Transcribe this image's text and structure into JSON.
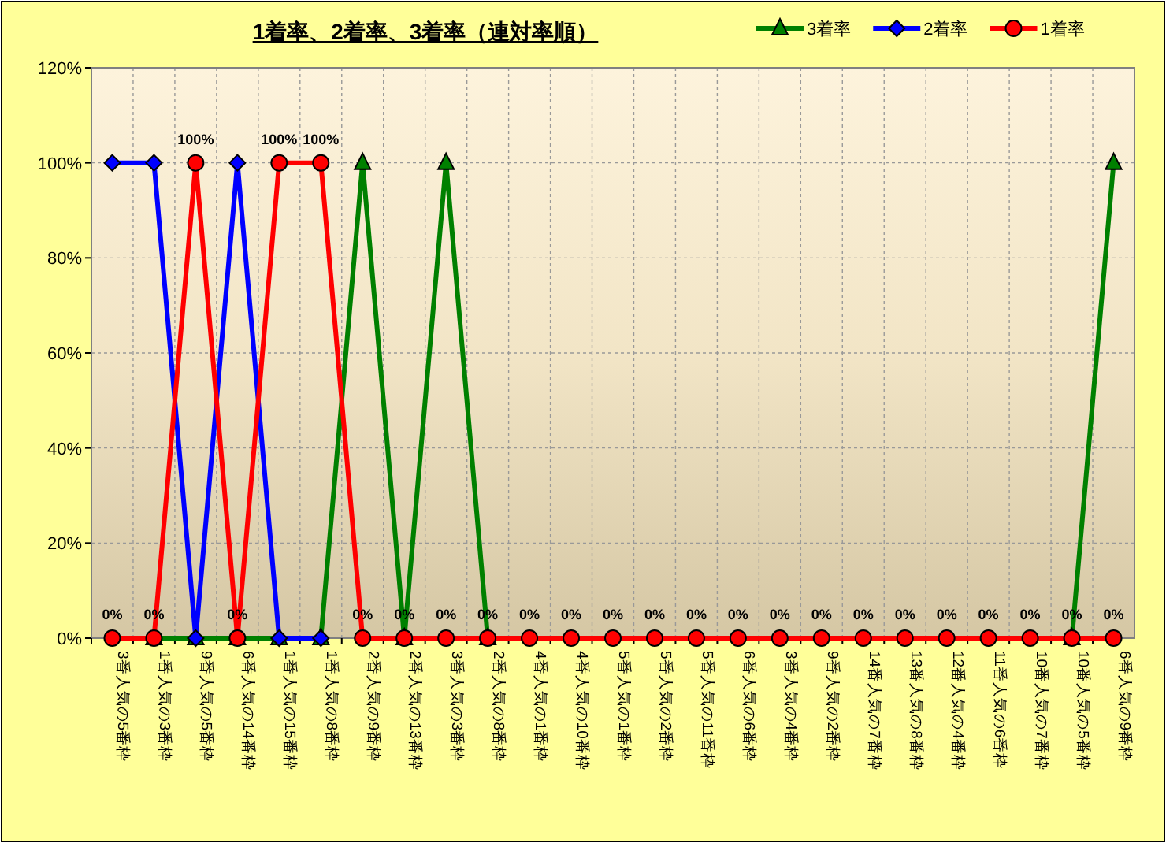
{
  "chart_data": {
    "type": "line",
    "title": "1着率、2着率、3着率（連対率順）",
    "categories": [
      "3番人気の5番枠",
      "1番人気の3番枠",
      "9番人気の5番枠",
      "6番人気の14番枠",
      "1番人気の15番枠",
      "1番人気の8番枠",
      "2番人気の9番枠",
      "2番人気の13番枠",
      "3番人気の3番枠",
      "2番人気の8番枠",
      "4番人気の1番枠",
      "4番人気の10番枠",
      "5番人気の1番枠",
      "5番人気の2番枠",
      "5番人気の11番枠",
      "6番人気の6番枠",
      "3番人気の4番枠",
      "9番人気の2番枠",
      "14番人気の7番枠",
      "13番人気の8番枠",
      "12番人気の4番枠",
      "11番人気の6番枠",
      "10番人気の7番枠",
      "10番人気の5番枠",
      "6番人気の9番枠"
    ],
    "series": [
      {
        "name": "3着率",
        "color": "#008000",
        "marker": "triangle",
        "values": [
          null,
          0,
          0,
          0,
          0,
          0,
          100,
          0,
          100,
          0,
          null,
          null,
          null,
          null,
          null,
          null,
          null,
          null,
          null,
          null,
          null,
          null,
          null,
          0,
          100
        ]
      },
      {
        "name": "2着率",
        "color": "#0000ff",
        "marker": "diamond",
        "values": [
          100,
          100,
          0,
          100,
          0,
          0,
          null,
          null,
          null,
          null,
          null,
          null,
          null,
          null,
          null,
          null,
          null,
          null,
          null,
          null,
          null,
          null,
          null,
          null,
          null
        ]
      },
      {
        "name": "1着率",
        "color": "#ff0000",
        "marker": "circle",
        "values": [
          0,
          0,
          100,
          0,
          100,
          100,
          0,
          0,
          0,
          0,
          0,
          0,
          0,
          0,
          0,
          0,
          0,
          0,
          0,
          0,
          0,
          0,
          0,
          0,
          0
        ],
        "value_labels": [
          "0%",
          "0%",
          "100%",
          "0%",
          "100%",
          "100%",
          "0%",
          "0%",
          "0%",
          "0%",
          "0%",
          "0%",
          "0%",
          "0%",
          "0%",
          "0%",
          "0%",
          "0%",
          "0%",
          "0%",
          "0%",
          "0%",
          "0%",
          "0%",
          "0%"
        ]
      }
    ],
    "ylim": [
      0,
      120
    ],
    "yticks": [
      {
        "value": 0,
        "label": "0%"
      },
      {
        "value": 20,
        "label": "20%"
      },
      {
        "value": 40,
        "label": "40%"
      },
      {
        "value": 60,
        "label": "60%"
      },
      {
        "value": 80,
        "label": "80%"
      },
      {
        "value": 100,
        "label": "100%"
      },
      {
        "value": 120,
        "label": "120%"
      }
    ],
    "grid": true,
    "legend": "top right"
  }
}
